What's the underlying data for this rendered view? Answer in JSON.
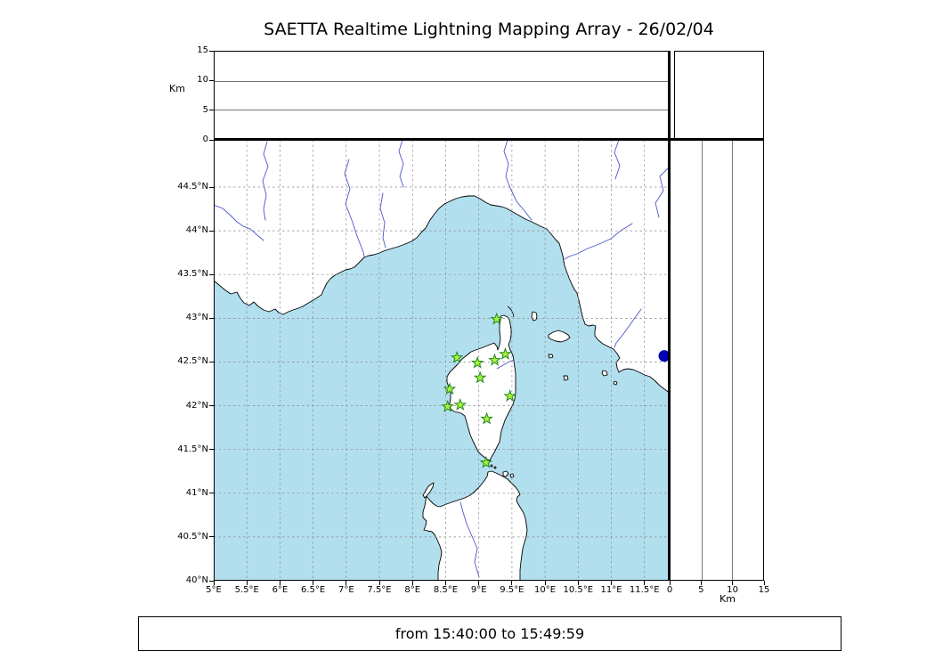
{
  "title": "SAETTA Realtime Lightning Mapping Array - 26/02/04",
  "footer": {
    "time_range": "from 15:40:00 to 15:49:59"
  },
  "colors": {
    "sea": "#b2dfee",
    "land": "#ffffff",
    "river": "#4a55c8",
    "grid": "#8a8a8a",
    "station_fill": "#aaf23c",
    "station_edge": "#1e8a1e",
    "event_dot": "#0000b4"
  },
  "alt_lon_panel": {
    "axis_label": "Km",
    "tick_labels": [
      "15",
      "10",
      "5",
      "0"
    ],
    "gridlines_km": [
      5,
      10
    ],
    "range_km": [
      0,
      15
    ]
  },
  "alt_lat_panel": {
    "axis_label": "Km",
    "tick_labels": [
      "0",
      "5",
      "10",
      "15"
    ],
    "gridlines_km": [
      5,
      10
    ],
    "range_km": [
      0,
      15
    ]
  },
  "map_panel": {
    "lon_range": [
      5.0,
      11.88
    ],
    "lat_range": [
      40.0,
      45.04
    ],
    "lat_tick_labels": [
      "44.5°N",
      "44°N",
      "43.5°N",
      "43°N",
      "42.5°N",
      "42°N",
      "41.5°N",
      "41°N",
      "40.5°N",
      "40°N"
    ],
    "lon_tick_labels": [
      "5°E",
      "5.5°E",
      "6°E",
      "6.5°E",
      "7°E",
      "7.5°E",
      "8°E",
      "8.5°E",
      "9°E",
      "9.5°E",
      "10°E",
      "10.5°E",
      "11°E",
      "11.5°E"
    ]
  },
  "chart_data": {
    "type": "scatter",
    "title": "SAETTA Realtime Lightning Mapping Array - 26/02/04",
    "time_window": {
      "from": "15:40:00",
      "to": "15:49:59"
    },
    "panels": [
      {
        "name": "altitude-vs-longitude",
        "position": "top",
        "ylabel": "Km",
        "ylim": [
          0,
          15
        ],
        "yticks": [
          0,
          5,
          10,
          15
        ],
        "gridlines_km": [
          5,
          10
        ],
        "data_points": []
      },
      {
        "name": "plan-view-map",
        "position": "center",
        "xlim_deg_e": [
          5.0,
          11.88
        ],
        "ylim_deg_n": [
          40.0,
          45.04
        ],
        "xticks_deg_e": [
          5,
          5.5,
          6,
          6.5,
          7,
          7.5,
          8,
          8.5,
          9,
          9.5,
          10,
          10.5,
          11,
          11.5
        ],
        "yticks_deg_n": [
          40,
          40.5,
          41,
          41.5,
          42,
          42.5,
          43,
          43.5,
          44,
          44.5
        ],
        "grid": "dashed 0.5-degree graticule",
        "region": "Western Mediterranean: French/Italian coast, Corsica, northern Sardinia, Tuscan islands"
      },
      {
        "name": "altitude-vs-latitude",
        "position": "right",
        "xlabel": "Km",
        "xlim": [
          0,
          15
        ],
        "xticks": [
          0,
          5,
          10,
          15
        ],
        "gridlines_km": [
          5,
          10
        ],
        "data_points": []
      },
      {
        "name": "altitude-histogram",
        "position": "top-right",
        "data_points": []
      }
    ],
    "stations": [
      {
        "lon": 9.27,
        "lat": 42.99
      },
      {
        "lon": 8.67,
        "lat": 42.55
      },
      {
        "lon": 8.98,
        "lat": 42.49
      },
      {
        "lon": 9.24,
        "lat": 42.52
      },
      {
        "lon": 9.4,
        "lat": 42.59
      },
      {
        "lon": 9.02,
        "lat": 42.32
      },
      {
        "lon": 8.56,
        "lat": 42.19
      },
      {
        "lon": 8.53,
        "lat": 41.99
      },
      {
        "lon": 8.72,
        "lat": 42.01
      },
      {
        "lon": 9.47,
        "lat": 42.11
      },
      {
        "lon": 9.12,
        "lat": 41.85
      },
      {
        "lon": 9.11,
        "lat": 41.35
      }
    ],
    "station_marker": "green star",
    "event_points": [
      {
        "lon": 11.8,
        "lat": 42.57,
        "marker": "filled blue circle"
      }
    ],
    "lightning_sources_plotted": 0
  }
}
